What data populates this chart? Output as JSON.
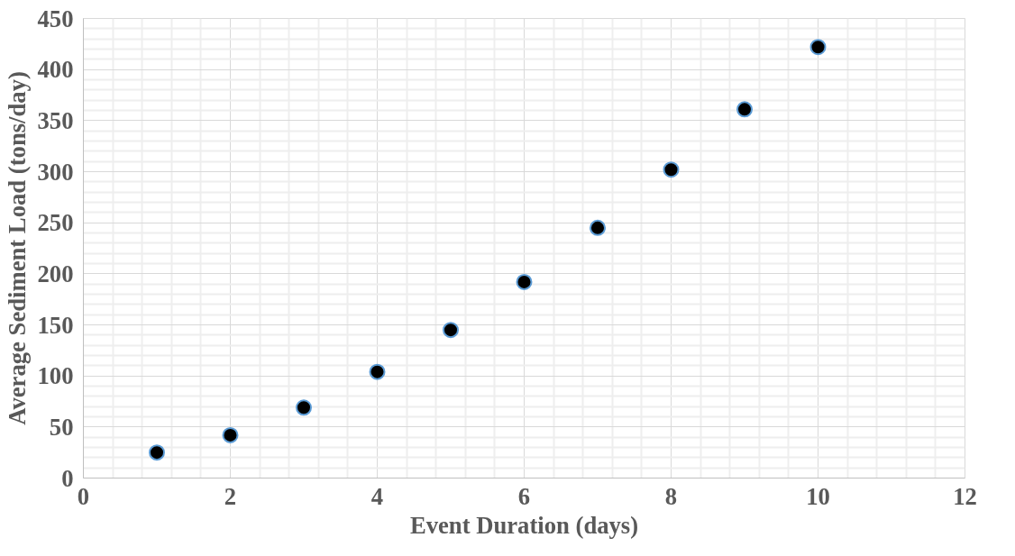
{
  "chart_data": {
    "type": "scatter",
    "xlabel": "Event Duration (days)",
    "ylabel": "Average Sediment Load (tons/day)",
    "x": [
      1,
      2,
      3,
      4,
      5,
      6,
      7,
      8,
      9,
      10
    ],
    "series": [
      {
        "color": "#000000",
        "values": [
          25,
          42,
          69,
          104,
          145,
          192,
          245,
          302,
          361,
          422
        ]
      }
    ],
    "xlim": [
      0,
      12
    ],
    "xticks": [
      0,
      2,
      4,
      6,
      8,
      10,
      12
    ],
    "ylim": [
      0,
      450
    ],
    "yticks": [
      0,
      50,
      100,
      150,
      200,
      250,
      300,
      350,
      400,
      450
    ],
    "grid": true,
    "marker": "circle"
  }
}
